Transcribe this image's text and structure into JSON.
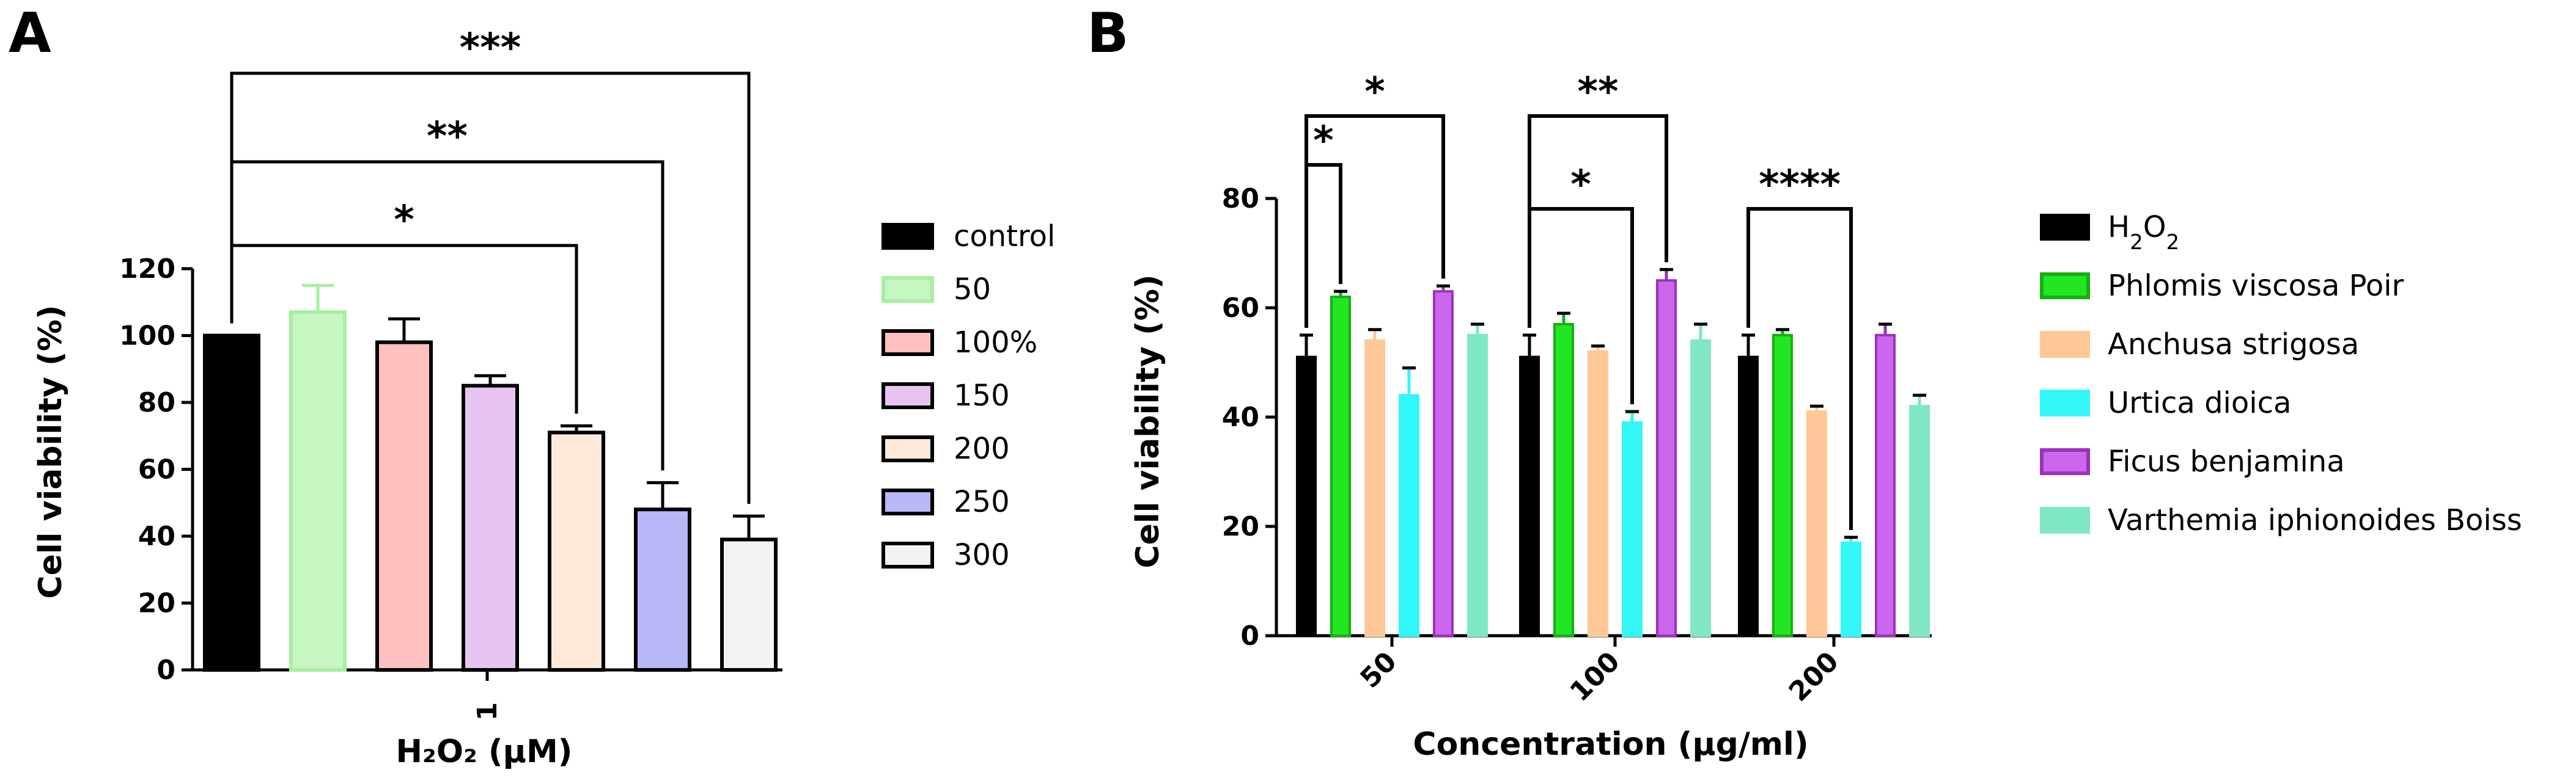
{
  "chart_data": [
    {
      "panel": "A",
      "type": "bar",
      "ylabel": "Cell viability (%)",
      "xlabel": "H₂O₂ (µM)",
      "x_tick": "1",
      "ylim": [
        0,
        120
      ],
      "yticks": [
        "0",
        "20",
        "40",
        "60",
        "80",
        "100",
        "120"
      ],
      "legend_position": "right",
      "series": [
        {
          "name": "control",
          "value": 100,
          "err": 0,
          "fill": "#000000",
          "stroke": "#000000"
        },
        {
          "name": "50",
          "value": 107,
          "err": 8,
          "fill": "#c6f7c3",
          "stroke": "#a6f0a0"
        },
        {
          "name": "100%",
          "value": 98,
          "err": 7,
          "fill": "#ffc0c0",
          "stroke": "#000000"
        },
        {
          "name": "150",
          "value": 85,
          "err": 3,
          "fill": "#e8c4f2",
          "stroke": "#000000"
        },
        {
          "name": "200",
          "value": 71,
          "err": 2,
          "fill": "#fde9d9",
          "stroke": "#000000"
        },
        {
          "name": "250",
          "value": 48,
          "err": 8,
          "fill": "#b8b8f8",
          "stroke": "#000000"
        },
        {
          "name": "300",
          "value": 39,
          "err": 7,
          "fill": "#f3f3f3",
          "stroke": "#000000"
        }
      ],
      "significance": [
        {
          "from": "control",
          "to": "200",
          "label": "*"
        },
        {
          "from": "control",
          "to": "250",
          "label": "**"
        },
        {
          "from": "control",
          "to": "300",
          "label": "***"
        }
      ]
    },
    {
      "panel": "B",
      "type": "bar",
      "ylabel": "Cell viability (%)",
      "xlabel": "Concentration (µg/ml)",
      "categories": [
        "50",
        "100",
        "200"
      ],
      "ylim": [
        0,
        80
      ],
      "yticks": [
        "0",
        "20",
        "40",
        "60",
        "80"
      ],
      "legend_position": "right",
      "series": [
        {
          "name": "H2O2",
          "values": [
            51,
            51,
            51
          ],
          "errs": [
            4,
            4,
            4
          ],
          "fill": "#000000",
          "stroke": "#000000"
        },
        {
          "name": "Phlomis viscosa Poir",
          "values": [
            62,
            57,
            55
          ],
          "errs": [
            1,
            2,
            1
          ],
          "fill": "#22e622",
          "stroke": "#14b014"
        },
        {
          "name": "Anchusa strigosa",
          "values": [
            54,
            52,
            41
          ],
          "errs": [
            2,
            1,
            1
          ],
          "fill": "#ffc896",
          "stroke": "#ffc896"
        },
        {
          "name": "Urtica dioica",
          "values": [
            44,
            39,
            17
          ],
          "errs": [
            5,
            2,
            1
          ],
          "fill": "#33f7f7",
          "stroke": "#33f7f7"
        },
        {
          "name": "Ficus benjamina",
          "values": [
            63,
            65,
            55
          ],
          "errs": [
            1,
            2,
            2
          ],
          "fill": "#cc66ee",
          "stroke": "#9933bb"
        },
        {
          "name": "Varthemia iphionoides Boiss",
          "values": [
            55,
            54,
            42
          ],
          "errs": [
            2,
            3,
            2
          ],
          "fill": "#7fe8c2",
          "stroke": "#7fe8c2"
        }
      ],
      "significance": [
        {
          "category": "50",
          "from": "H2O2",
          "to": "Phlomis viscosa Poir",
          "label": "*"
        },
        {
          "category": "50",
          "from": "H2O2",
          "to": "Ficus benjamina",
          "label": "*"
        },
        {
          "category": "100",
          "from": "H2O2",
          "to": "Urtica dioica",
          "label": "*"
        },
        {
          "category": "100",
          "from": "H2O2",
          "to": "Ficus benjamina",
          "label": "**"
        },
        {
          "category": "200",
          "from": "H2O2",
          "to": "Urtica dioica",
          "label": "****"
        }
      ]
    }
  ]
}
